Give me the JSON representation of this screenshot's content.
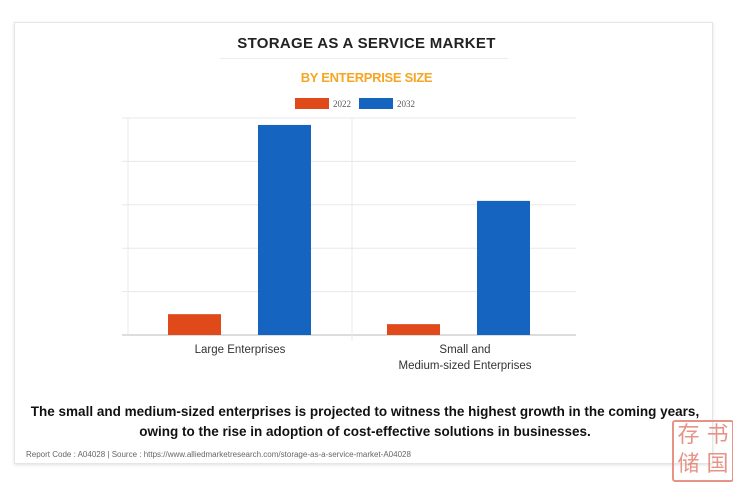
{
  "chart_data": {
    "type": "bar",
    "title": "STORAGE AS A SERVICE MARKET",
    "subtitle": "BY ENTERPRISE SIZE",
    "categories": [
      "Large Enterprises",
      "Small and\nMedium-sized Enterprises"
    ],
    "series": [
      {
        "name": "2022",
        "color": "#e04a1a",
        "values": [
          0.48,
          0.25
        ]
      },
      {
        "name": "2032",
        "color": "#1565c0",
        "values": [
          4.84,
          3.09
        ]
      }
    ],
    "ylim": [
      0,
      5
    ],
    "y_ticks_labeled": false,
    "grid": true,
    "legend": "top-center"
  },
  "note": "The small and medium-sized enterprises is projected to witness the highest growth in the coming years, owing to the rise in adoption of cost-effective solutions in businesses.",
  "source": "Report Code : A04028  |  Source : https://www.alliedmarketresearch.com/storage-as-a-service-market-A04028",
  "stamp": "存储书国"
}
